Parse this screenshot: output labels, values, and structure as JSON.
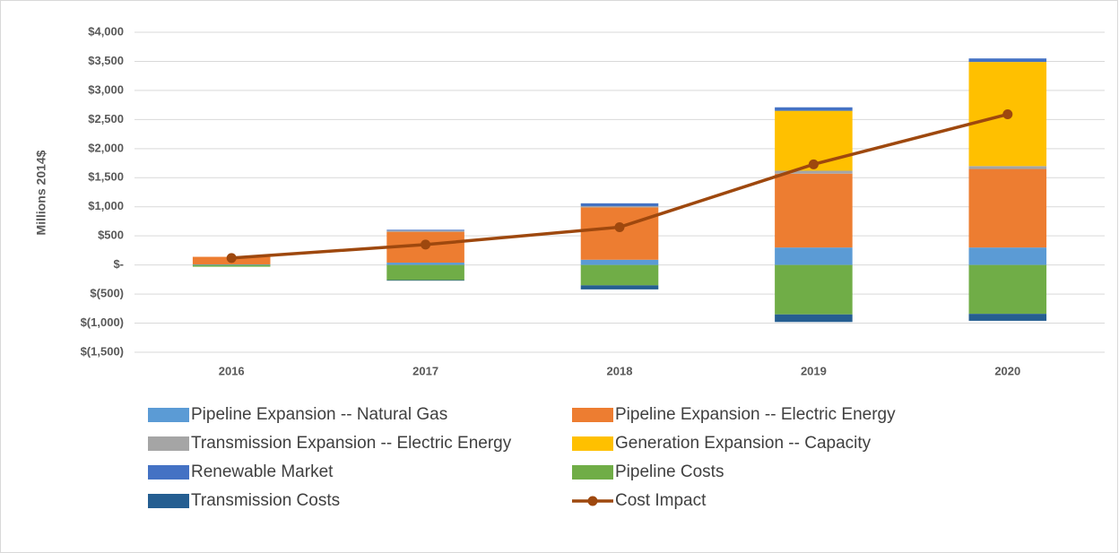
{
  "chart_data": {
    "type": "bar",
    "stacked": true,
    "y_label": "Millions 2014$",
    "categories": [
      "2016",
      "2017",
      "2018",
      "2019",
      "2020"
    ],
    "ylim": [
      -1500,
      4000
    ],
    "yticks": [
      {
        "value": -1500,
        "label": "$(1,500)"
      },
      {
        "value": -1000,
        "label": "$(1,000)"
      },
      {
        "value": -500,
        "label": "$(500)"
      },
      {
        "value": 0,
        "label": "$-"
      },
      {
        "value": 500,
        "label": "$500"
      },
      {
        "value": 1000,
        "label": "$1,000"
      },
      {
        "value": 1500,
        "label": "$1,500"
      },
      {
        "value": 2000,
        "label": "$2,000"
      },
      {
        "value": 2500,
        "label": "$2,500"
      },
      {
        "value": 3000,
        "label": "$3,000"
      },
      {
        "value": 3500,
        "label": "$3,500"
      },
      {
        "value": 4000,
        "label": "$4,000"
      }
    ],
    "grid": true,
    "legend": "bottom",
    "series": [
      {
        "name": "Pipeline Expansion -- Natural Gas",
        "color": "#5b9bd5",
        "values": [
          10,
          40,
          90,
          300,
          300
        ]
      },
      {
        "name": "Pipeline Expansion -- Electric Energy",
        "color": "#ed7d31",
        "values": [
          130,
          530,
          900,
          1270,
          1350
        ]
      },
      {
        "name": "Transmission Expansion -- Electric Energy",
        "color": "#a5a5a5",
        "values": [
          0,
          20,
          20,
          50,
          50
        ]
      },
      {
        "name": "Generation Expansion -- Capacity",
        "color": "#ffc000",
        "values": [
          0,
          0,
          0,
          1030,
          1790
        ]
      },
      {
        "name": "Renewable Market",
        "color": "#4472c4",
        "values": [
          0,
          15,
          50,
          60,
          60
        ]
      },
      {
        "name": "Pipeline Costs",
        "color": "#70ad47",
        "values": [
          -30,
          -260,
          -350,
          -850,
          -840
        ]
      },
      {
        "name": "Transmission Costs",
        "color": "#255e91",
        "values": [
          0,
          -10,
          -70,
          -130,
          -120
        ]
      },
      {
        "name": "Cost Impact",
        "color": "#9e480e",
        "type": "line",
        "values": [
          120,
          350,
          650,
          1730,
          2590
        ]
      }
    ]
  }
}
